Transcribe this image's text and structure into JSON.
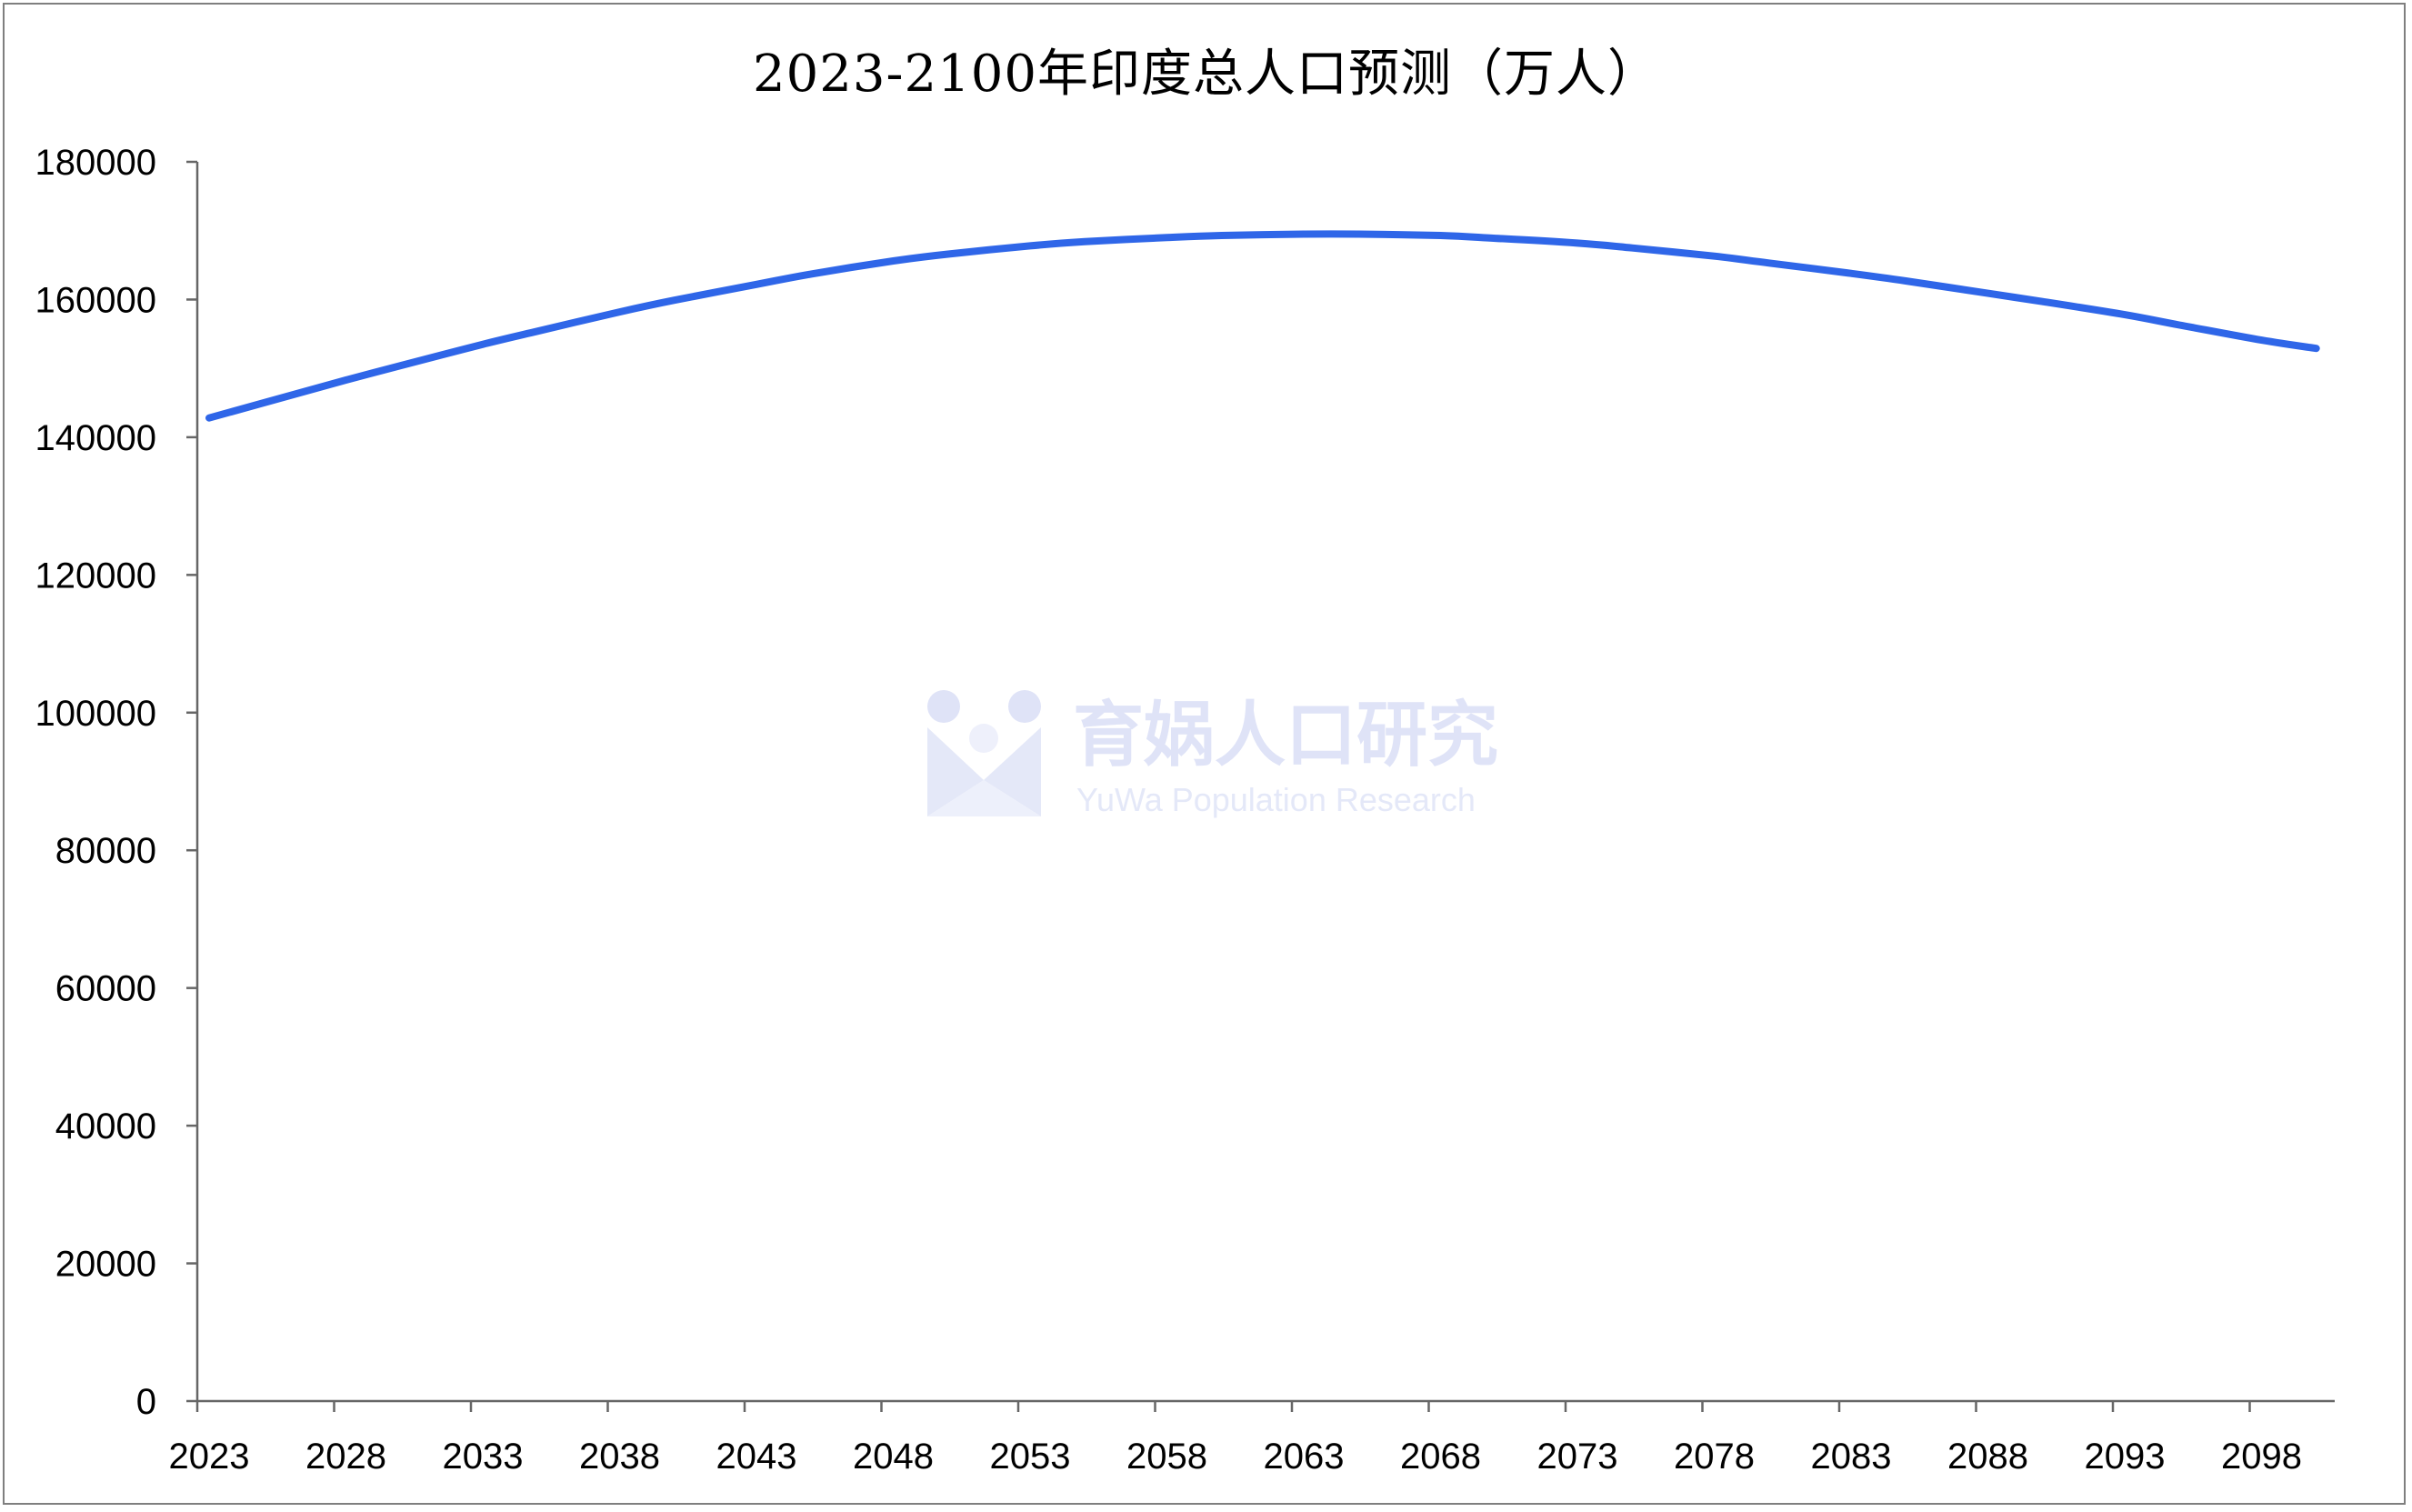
{
  "title": "2023-2100年印度总人口预测（万人）",
  "watermark": {
    "name_cn": "育娲人口研究",
    "name_en": "YuWa Population Research",
    "icon": "yuwa-logo-icon"
  },
  "colors": {
    "line": "#2f66e8",
    "axis": "#666666",
    "watermark": "#dfe3f7"
  },
  "chart_data": {
    "type": "line",
    "title": "2023-2100年印度总人口预测（万人）",
    "xlabel": "",
    "ylabel": "",
    "ylim": [
      0,
      180000
    ],
    "yticks": [
      0,
      20000,
      40000,
      60000,
      80000,
      100000,
      120000,
      140000,
      160000,
      180000
    ],
    "xlim": [
      2023,
      2101
    ],
    "xticks": [
      2023,
      2028,
      2033,
      2038,
      2043,
      2048,
      2053,
      2058,
      2063,
      2068,
      2073,
      2078,
      2083,
      2088,
      2093,
      2098
    ],
    "grid": false,
    "legend": "none",
    "series": [
      {
        "x": [
          2023,
          2025,
          2028,
          2030,
          2033,
          2035,
          2038,
          2040,
          2043,
          2045,
          2048,
          2050,
          2053,
          2055,
          2058,
          2060,
          2063,
          2065,
          2068,
          2070,
          2073,
          2075,
          2078,
          2080,
          2083,
          2085,
          2088,
          2090,
          2093,
          2095,
          2098,
          2100
        ],
        "values": [
          142800,
          145000,
          148300,
          150400,
          153500,
          155400,
          158200,
          159900,
          162200,
          163700,
          165600,
          166600,
          167800,
          168400,
          169000,
          169300,
          169500,
          169500,
          169300,
          168900,
          168200,
          167500,
          166300,
          165300,
          163800,
          162700,
          160900,
          159700,
          157800,
          156300,
          154100,
          152900
        ]
      }
    ]
  }
}
